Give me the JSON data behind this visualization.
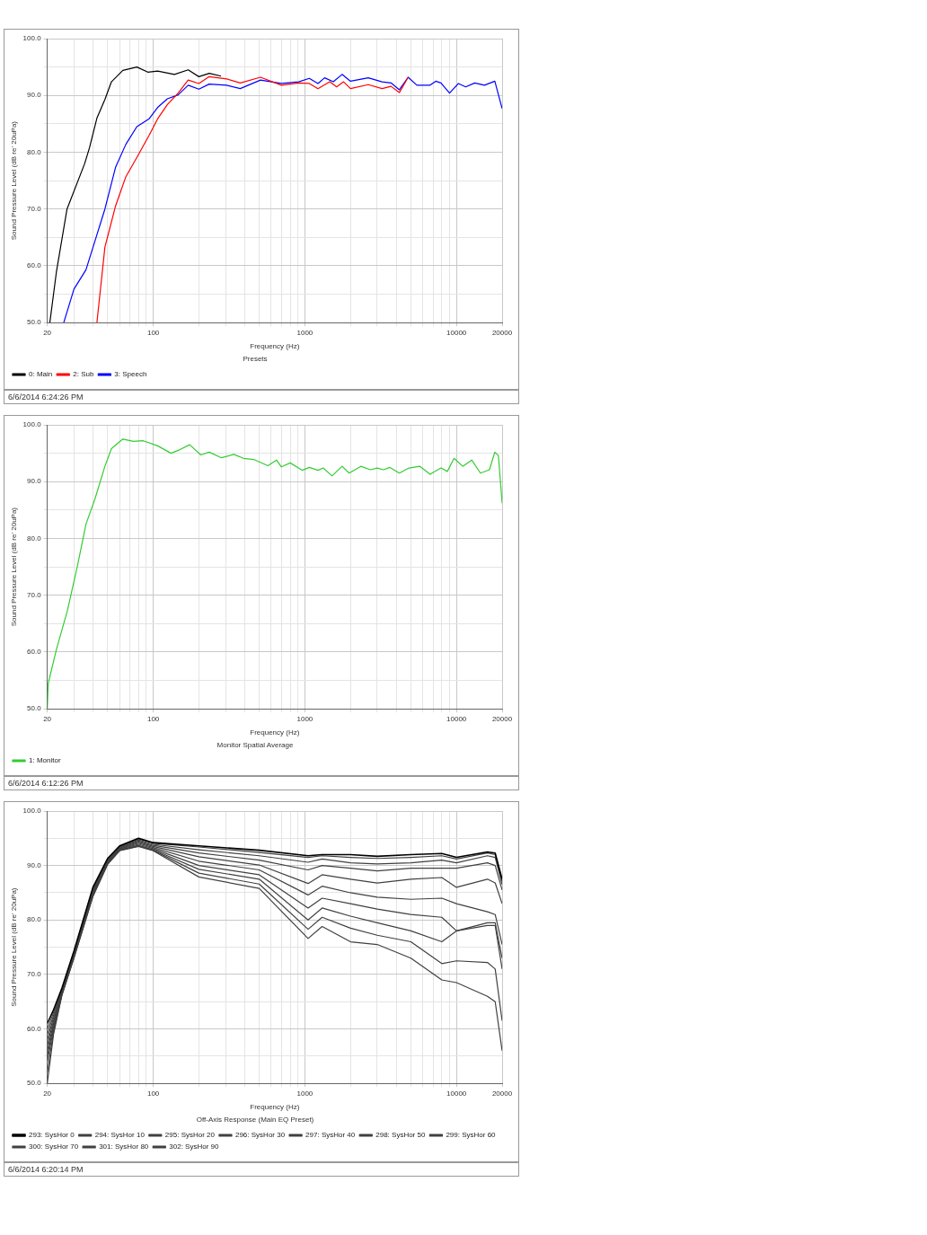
{
  "chart_data": [
    {
      "type": "line",
      "title": "Presets",
      "xlabel": "Frequency (Hz)",
      "ylabel": "Sound Pressure Level (dB re' 20uPa)",
      "log": "x",
      "xlim": [
        20,
        20000
      ],
      "xticks": [
        20,
        {
          "value": 30,
          "label": null
        },
        {
          "value": 40,
          "label": null
        },
        {
          "value": 50,
          "label": null
        },
        {
          "value": 60,
          "label": null
        },
        {
          "value": 70,
          "label": null
        },
        {
          "value": 80,
          "label": null
        },
        {
          "value": 90,
          "label": null
        },
        100,
        {
          "value": 200,
          "label": null
        },
        {
          "value": 300,
          "label": null
        },
        {
          "value": 400,
          "label": null
        },
        {
          "value": 500,
          "label": null
        },
        {
          "value": 600,
          "label": null
        },
        {
          "value": 700,
          "label": null
        },
        {
          "value": 800,
          "label": null
        },
        {
          "value": 900,
          "label": null
        },
        1000,
        {
          "value": 2000,
          "label": null
        },
        {
          "value": 3000,
          "label": null
        },
        {
          "value": 4000,
          "label": null
        },
        {
          "value": 5000,
          "label": null
        },
        {
          "value": 6000,
          "label": null
        },
        {
          "value": 7000,
          "label": null
        },
        {
          "value": 8000,
          "label": null
        },
        {
          "value": 9000,
          "label": null
        },
        10000,
        20000
      ],
      "ylim": [
        50,
        100
      ],
      "yticks": [
        {
          "value": 50,
          "label": "50.0"
        },
        {
          "value": 55,
          "label": null
        },
        {
          "value": 60,
          "label": "60.0"
        },
        {
          "value": 65,
          "label": null
        },
        {
          "value": 70,
          "label": "70.0"
        },
        {
          "value": 75,
          "label": null
        },
        {
          "value": 80,
          "label": "80.0"
        },
        {
          "value": 85,
          "label": null
        },
        {
          "value": 90,
          "label": "90.0"
        },
        {
          "value": 95,
          "label": null
        },
        {
          "value": 100,
          "label": "100.0"
        }
      ],
      "grid": true,
      "legend": "bottom",
      "marker": "none",
      "line_style": "solid",
      "annotations": [
        "6/6/2014 6:24:26 PM"
      ],
      "series": [
        {
          "name": "0: Main",
          "color": "#000000",
          "x": [
            20.8,
            23,
            27,
            35.3,
            38,
            42.5,
            48,
            53,
            63,
            78,
            92,
            107,
            138,
            170,
            200,
            234,
            280
          ],
          "values": [
            50,
            59,
            70,
            78,
            80.8,
            86,
            89.3,
            92.4,
            94.4,
            95,
            94.1,
            94.3,
            93.7,
            94.5,
            93.3,
            93.9,
            93.4
          ]
        },
        {
          "name": "2: Sub",
          "color": "#ff0000",
          "x": [
            42.5,
            48,
            56.5,
            66,
            78,
            94,
            107,
            124,
            146,
            170,
            200,
            234,
            305,
            375,
            510,
            700,
            910,
            1070,
            1220,
            1460,
            1620,
            1800,
            2000,
            2620,
            3230,
            3700,
            4200,
            4800
          ],
          "values": [
            50,
            63.3,
            70.6,
            75.7,
            79.1,
            83,
            85.9,
            88.4,
            90.4,
            92.7,
            92.1,
            93.3,
            92.9,
            92.2,
            93.2,
            91.8,
            92.2,
            92.1,
            91.2,
            92.4,
            91.5,
            92.4,
            91.2,
            91.9,
            91.2,
            91.6,
            90.5,
            93.2
          ]
        },
        {
          "name": "3: Speech",
          "color": "#0000ff",
          "x": [
            25.7,
            30,
            36,
            41.3,
            48,
            56.5,
            66,
            78,
            94,
            107,
            124,
            146,
            170,
            200,
            234,
            305,
            375,
            510,
            700,
            910,
            1070,
            1220,
            1350,
            1540,
            1760,
            2000,
            2620,
            3230,
            3700,
            4200,
            4800,
            5480,
            6700,
            7300,
            7900,
            9000,
            10300,
            11500,
            13200,
            15300,
            17900,
            20000
          ],
          "values": [
            50,
            55.9,
            59.3,
            64.4,
            70,
            77.4,
            81.4,
            84.5,
            85.9,
            87.9,
            89.4,
            90.1,
            91.8,
            91.1,
            92,
            91.8,
            91.2,
            92.7,
            92.1,
            92.4,
            93,
            92.1,
            93.1,
            92.4,
            93.7,
            92.5,
            93.1,
            92.4,
            92.2,
            91,
            93.2,
            91.8,
            91.8,
            92.5,
            92.2,
            90.4,
            92.1,
            91.5,
            92.2,
            91.8,
            92.5,
            87.7
          ]
        }
      ]
    },
    {
      "type": "line",
      "title": "Monitor Spatial Average",
      "xlabel": "Frequency (Hz)",
      "ylabel": "Sound Pressure Level (dB re' 20uPa)",
      "log": "x",
      "xlim": [
        20,
        20000
      ],
      "xticks": [
        20,
        {
          "value": 30,
          "label": null
        },
        {
          "value": 40,
          "label": null
        },
        {
          "value": 50,
          "label": null
        },
        {
          "value": 60,
          "label": null
        },
        {
          "value": 70,
          "label": null
        },
        {
          "value": 80,
          "label": null
        },
        {
          "value": 90,
          "label": null
        },
        100,
        {
          "value": 200,
          "label": null
        },
        {
          "value": 300,
          "label": null
        },
        {
          "value": 400,
          "label": null
        },
        {
          "value": 500,
          "label": null
        },
        {
          "value": 600,
          "label": null
        },
        {
          "value": 700,
          "label": null
        },
        {
          "value": 800,
          "label": null
        },
        {
          "value": 900,
          "label": null
        },
        1000,
        {
          "value": 2000,
          "label": null
        },
        {
          "value": 3000,
          "label": null
        },
        {
          "value": 4000,
          "label": null
        },
        {
          "value": 5000,
          "label": null
        },
        {
          "value": 6000,
          "label": null
        },
        {
          "value": 7000,
          "label": null
        },
        {
          "value": 8000,
          "label": null
        },
        {
          "value": 9000,
          "label": null
        },
        10000,
        20000
      ],
      "ylim": [
        50,
        100
      ],
      "yticks": [
        {
          "value": 50,
          "label": "50.0"
        },
        {
          "value": 55,
          "label": null
        },
        {
          "value": 60,
          "label": "60.0"
        },
        {
          "value": 65,
          "label": null
        },
        {
          "value": 70,
          "label": "70.0"
        },
        {
          "value": 75,
          "label": null
        },
        {
          "value": 80,
          "label": "80.0"
        },
        {
          "value": 85,
          "label": null
        },
        {
          "value": 90,
          "label": "90.0"
        },
        {
          "value": 95,
          "label": null
        },
        {
          "value": 100,
          "label": "100.0"
        }
      ],
      "grid": true,
      "legend": "bottom",
      "marker": "none",
      "line_style": "solid",
      "annotations": [
        "6/6/2014 6:12:26 PM"
      ],
      "x": [
        20,
        20.3,
        23,
        27.1,
        31.6,
        36,
        41.3,
        48,
        53,
        63,
        74,
        86,
        107,
        131,
        149,
        174,
        206,
        234,
        282,
        340,
        394,
        460,
        570,
        650,
        700,
        800,
        960,
        1070,
        1220,
        1320,
        1510,
        1760,
        1960,
        2340,
        2710,
        3000,
        3300,
        3640,
        4200,
        4860,
        5740,
        6700,
        7900,
        8700,
        9640,
        11000,
        12600,
        14400,
        16500,
        17900,
        18900,
        20000
      ],
      "series": [
        {
          "name": "1: Monitor",
          "color": "#33cc33",
          "values": [
            50,
            54.5,
            60.5,
            67.2,
            75.1,
            82.5,
            87,
            92.7,
            95.8,
            97.5,
            97.1,
            97.2,
            96.3,
            95,
            95.6,
            96.5,
            94.7,
            95.2,
            94.2,
            94.8,
            94.1,
            93.9,
            92.8,
            93.8,
            92.6,
            93.3,
            92,
            92.5,
            92,
            92.4,
            91,
            92.7,
            91.5,
            92.7,
            92.1,
            92.4,
            92.1,
            92.5,
            91.5,
            92.4,
            92.7,
            91.3,
            92.4,
            91.8,
            94.1,
            92.7,
            93.8,
            91.5,
            92.1,
            95.2,
            94.6,
            86.2
          ]
        }
      ]
    },
    {
      "type": "line",
      "title": "Off-Axis Response (Main EQ Preset)",
      "xlabel": "Frequency (Hz)",
      "ylabel": "Sound Pressure Level (dB re' 20uPa)",
      "log": "x",
      "xlim": [
        20,
        20000
      ],
      "xticks": [
        20,
        {
          "value": 30,
          "label": null
        },
        {
          "value": 40,
          "label": null
        },
        {
          "value": 50,
          "label": null
        },
        {
          "value": 60,
          "label": null
        },
        {
          "value": 70,
          "label": null
        },
        {
          "value": 80,
          "label": null
        },
        {
          "value": 90,
          "label": null
        },
        100,
        {
          "value": 200,
          "label": null
        },
        {
          "value": 300,
          "label": null
        },
        {
          "value": 400,
          "label": null
        },
        {
          "value": 500,
          "label": null
        },
        {
          "value": 600,
          "label": null
        },
        {
          "value": 700,
          "label": null
        },
        {
          "value": 800,
          "label": null
        },
        {
          "value": 900,
          "label": null
        },
        1000,
        {
          "value": 2000,
          "label": null
        },
        {
          "value": 3000,
          "label": null
        },
        {
          "value": 4000,
          "label": null
        },
        {
          "value": 5000,
          "label": null
        },
        {
          "value": 6000,
          "label": null
        },
        {
          "value": 7000,
          "label": null
        },
        {
          "value": 8000,
          "label": null
        },
        {
          "value": 9000,
          "label": null
        },
        10000,
        20000
      ],
      "ylim": [
        50,
        100
      ],
      "yticks": [
        {
          "value": 50,
          "label": "50.0"
        },
        {
          "value": 55,
          "label": null
        },
        {
          "value": 60,
          "label": "60.0"
        },
        {
          "value": 65,
          "label": null
        },
        {
          "value": 70,
          "label": "70.0"
        },
        {
          "value": 75,
          "label": null
        },
        {
          "value": 80,
          "label": "80.0"
        },
        {
          "value": 85,
          "label": null
        },
        {
          "value": 90,
          "label": "90.0"
        },
        {
          "value": 95,
          "label": null
        },
        {
          "value": 100,
          "label": "100.0"
        }
      ],
      "grid": true,
      "legend": "bottom",
      "marker": "none",
      "line_style": "solid",
      "annotations": [
        "6/6/2014 6:20:14 PM"
      ],
      "x": [
        20,
        22,
        25,
        30,
        40,
        50,
        60,
        80,
        100,
        200,
        500,
        1050,
        1300,
        2000,
        3000,
        5000,
        8000,
        10000,
        16000,
        18000,
        20000
      ],
      "series": [
        {
          "name": "293: SysHor 0",
          "color": "#000000",
          "values": [
            61,
            63.5,
            67.5,
            74.3,
            86,
            91.3,
            93.6,
            95,
            94.2,
            93.6,
            92.8,
            91.8,
            92,
            92,
            91.7,
            92,
            92.2,
            91.5,
            92.5,
            92.3,
            87.5
          ]
        },
        {
          "name": "294: SysHor 10",
          "color": "#404040",
          "values": [
            60,
            63,
            67.2,
            74,
            85.8,
            91.2,
            93.5,
            94.9,
            94.1,
            93.4,
            92.4,
            91.5,
            91.8,
            91.5,
            91.3,
            91.5,
            91.8,
            91.2,
            92.3,
            92,
            87
          ]
        },
        {
          "name": "295: SysHor 20",
          "color": "#404040",
          "values": [
            59,
            62.5,
            67,
            73.8,
            85.6,
            91,
            93.4,
            94.7,
            93.9,
            92.9,
            91.8,
            90.6,
            91.2,
            90.5,
            90.3,
            90.5,
            91,
            90.5,
            91.8,
            91.5,
            86.5
          ]
        },
        {
          "name": "296: SysHor 30",
          "color": "#404040",
          "values": [
            58,
            62,
            66.8,
            73.7,
            85.4,
            90.9,
            93.3,
            94.5,
            93.7,
            92.3,
            91,
            89.2,
            90,
            89.5,
            89,
            89.5,
            89.5,
            89.5,
            90.5,
            90,
            85.5
          ]
        },
        {
          "name": "297: SysHor 40",
          "color": "#404040",
          "values": [
            57,
            61.5,
            66.7,
            73.6,
            85.2,
            90.8,
            93.2,
            94.3,
            93.5,
            91.6,
            90.1,
            86.7,
            88.3,
            87.5,
            86.8,
            87.5,
            87.8,
            86,
            87.5,
            86.8,
            83
          ]
        },
        {
          "name": "298: SysHor 50",
          "color": "#404040",
          "values": [
            56,
            61,
            66.6,
            73.5,
            85,
            90.6,
            93.1,
            94.1,
            93.3,
            90.8,
            89.2,
            84.6,
            86.2,
            85,
            84.2,
            83.8,
            84,
            83,
            81.5,
            81,
            75.5
          ]
        },
        {
          "name": "299: SysHor 60",
          "color": "#404040",
          "values": [
            55,
            60.5,
            66.5,
            73.4,
            84.8,
            90.5,
            93,
            93.9,
            93.1,
            90,
            88.3,
            82.2,
            84,
            83,
            82,
            81,
            80.5,
            78,
            79.5,
            79.5,
            73
          ]
        },
        {
          "name": "300: SysHor 70",
          "color": "#404040",
          "values": [
            54,
            60,
            66.4,
            73.3,
            84.6,
            90.4,
            92.9,
            93.7,
            92.9,
            89.3,
            87.5,
            80,
            82.2,
            80.7,
            79.5,
            78,
            76,
            78,
            79,
            79,
            71
          ]
        },
        {
          "name": "301: SysHor 80",
          "color": "#404040",
          "values": [
            52,
            59.5,
            66.3,
            73.1,
            84.4,
            90.3,
            92.8,
            93.6,
            92.8,
            88.6,
            86.6,
            78.3,
            80.5,
            78.5,
            77.2,
            76,
            72,
            72.5,
            72.2,
            71,
            61.5
          ]
        },
        {
          "name": "302: SysHor 90",
          "color": "#404040",
          "values": [
            50,
            59,
            66.2,
            73,
            84.3,
            90.2,
            92.7,
            93.5,
            92.7,
            87.9,
            85.8,
            76.6,
            78.8,
            76,
            75.5,
            73,
            69,
            68.5,
            66,
            65,
            56
          ]
        }
      ]
    }
  ]
}
